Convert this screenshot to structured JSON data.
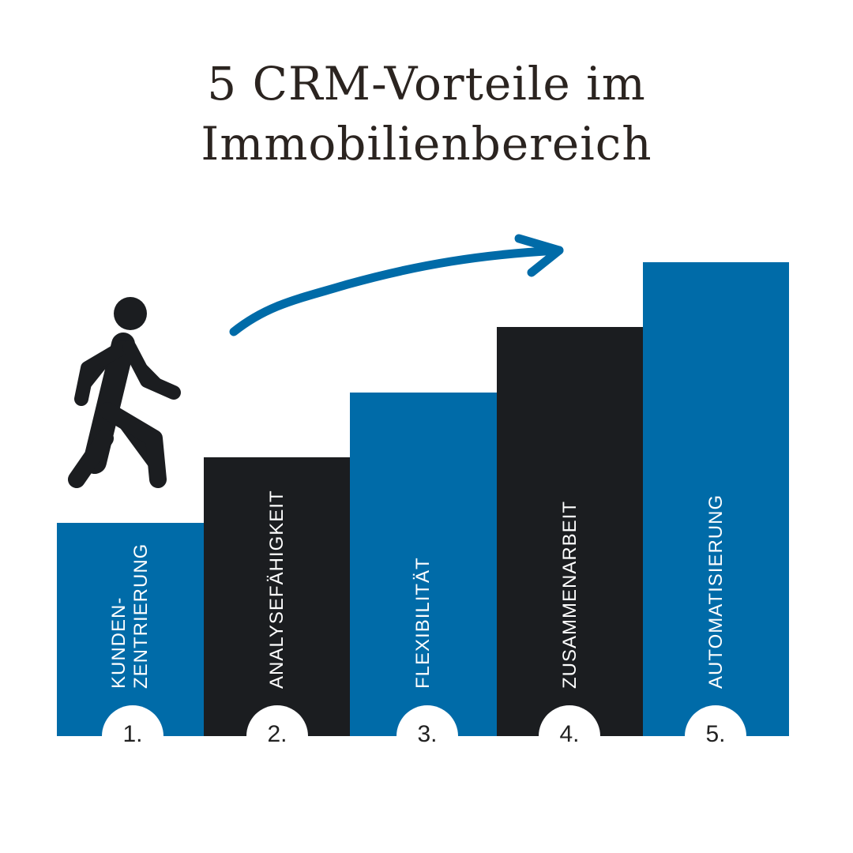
{
  "title": {
    "line1": "5 CRM-Vorteile im",
    "line2": "Immobilienbereich"
  },
  "colors": {
    "blue": "#006ba8",
    "dark": "#1b1d20",
    "text": "#2b2420"
  },
  "icons": {
    "figure": "walking-person-icon",
    "arrow": "curved-arrow-icon"
  },
  "steps": [
    {
      "number": "1.",
      "lines": [
        "KUNDEN-",
        "ZENTRIERUNG"
      ],
      "color": "blue",
      "level": 1
    },
    {
      "number": "2.",
      "lines": [
        "ANALYSEFÄHIGKEIT"
      ],
      "color": "dark",
      "level": 2
    },
    {
      "number": "3.",
      "lines": [
        "FLEXIBILITÄT"
      ],
      "color": "blue",
      "level": 3
    },
    {
      "number": "4.",
      "lines": [
        "ZUSAMMENARBEIT"
      ],
      "color": "dark",
      "level": 4
    },
    {
      "number": "5.",
      "lines": [
        "AUTOMATISIERUNG"
      ],
      "color": "blue",
      "level": 5
    }
  ]
}
